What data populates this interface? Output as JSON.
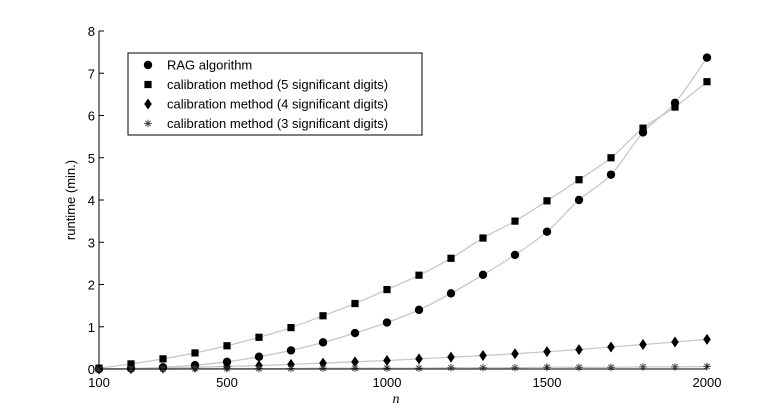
{
  "chart_data": {
    "type": "scatter",
    "xlabel": "n",
    "ylabel": "runtime (min.)",
    "xlim": [
      100,
      2000
    ],
    "ylim": [
      0,
      8
    ],
    "xticks": [
      100,
      500,
      1000,
      1500,
      2000
    ],
    "yticks": [
      0,
      1,
      2,
      3,
      4,
      5,
      6,
      7,
      8
    ],
    "grid": false,
    "legend_position": "top-left",
    "x": [
      100,
      200,
      300,
      400,
      500,
      600,
      700,
      800,
      900,
      1000,
      1100,
      1200,
      1300,
      1400,
      1500,
      1600,
      1700,
      1800,
      1900,
      2000
    ],
    "series": [
      {
        "name": "RAG algorithm",
        "marker": "circle",
        "values": [
          0.0,
          0.01,
          0.04,
          0.09,
          0.17,
          0.29,
          0.44,
          0.63,
          0.85,
          1.1,
          1.4,
          1.79,
          2.23,
          2.7,
          3.25,
          4.0,
          4.6,
          5.6,
          6.3,
          7.37
        ]
      },
      {
        "name": "calibration method (5 significant digits)",
        "marker": "square",
        "values": [
          0.02,
          0.12,
          0.24,
          0.38,
          0.55,
          0.75,
          0.98,
          1.26,
          1.55,
          1.88,
          2.22,
          2.62,
          3.1,
          3.5,
          3.98,
          4.48,
          5.0,
          5.7,
          6.2,
          6.8
        ]
      },
      {
        "name": "calibration method (4 significant digits)",
        "marker": "diamond",
        "values": [
          0.0,
          0.01,
          0.02,
          0.04,
          0.06,
          0.08,
          0.11,
          0.14,
          0.17,
          0.2,
          0.24,
          0.28,
          0.32,
          0.36,
          0.41,
          0.46,
          0.52,
          0.58,
          0.64,
          0.7
        ]
      },
      {
        "name": "calibration method (3 significant digits)",
        "marker": "star",
        "values": [
          0.0,
          0.0,
          0.0,
          0.01,
          0.01,
          0.01,
          0.01,
          0.02,
          0.02,
          0.02,
          0.02,
          0.03,
          0.03,
          0.03,
          0.04,
          0.04,
          0.04,
          0.05,
          0.05,
          0.06
        ]
      }
    ]
  }
}
